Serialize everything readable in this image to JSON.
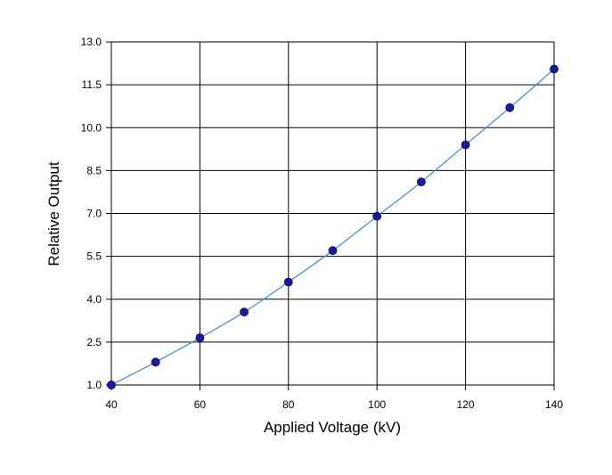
{
  "chart_data": {
    "type": "scatter",
    "xlabel": "Applied Voltage (kV)",
    "ylabel": "Relative Output",
    "xlim": [
      40,
      140
    ],
    "ylim": [
      1.0,
      13.0
    ],
    "x_ticks": [
      "40",
      "60",
      "80",
      "100",
      "120",
      "140"
    ],
    "y_ticks": [
      "1.0",
      "2.5",
      "4.0",
      "5.5",
      "7.0",
      "8.5",
      "10.0",
      "11.5",
      "13.0"
    ],
    "grid": true,
    "legend": "none",
    "series": [
      {
        "x": [
          40,
          50,
          60,
          70,
          80,
          90,
          100,
          110,
          120,
          130,
          140
        ],
        "y": [
          1.0,
          1.8,
          2.65,
          3.55,
          4.6,
          5.7,
          6.9,
          8.1,
          9.4,
          10.7,
          12.05
        ],
        "marker_color": "#1a1aa0",
        "line_color": "#4a90d9",
        "line": "smooth fit"
      }
    ]
  }
}
